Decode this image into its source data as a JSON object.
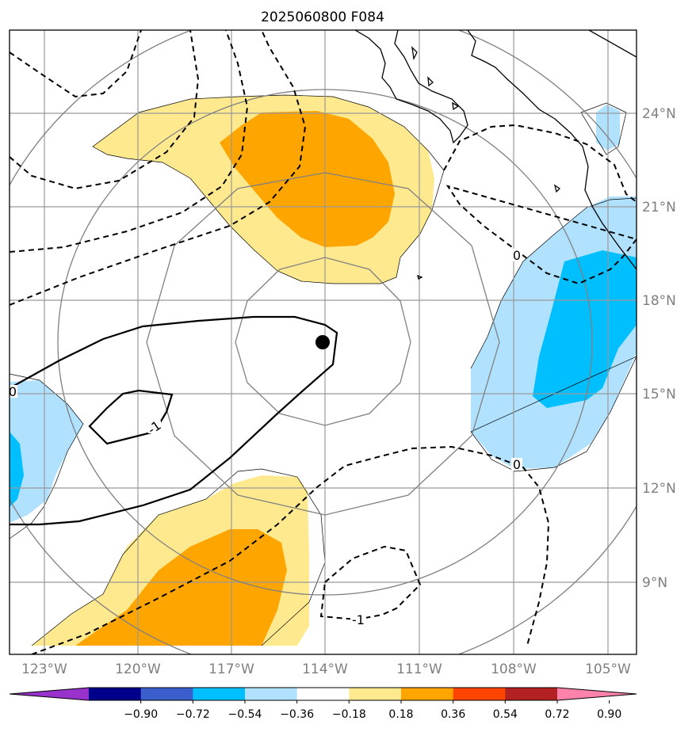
{
  "title": "2025060800 F084",
  "lon_labels": [
    "123°W",
    "120°W",
    "117°W",
    "114°W",
    "111°W",
    "108°W",
    "105°W"
  ],
  "lat_labels": [
    "24°N",
    "21°N",
    "18°N",
    "15°N",
    "12°N",
    "9°N"
  ],
  "contour_labels": [
    "0",
    "0",
    "0",
    "-1",
    "-1"
  ],
  "colorbar": {
    "ticks": [
      "−0.90",
      "−0.72",
      "−0.54",
      "−0.36",
      "−0.18",
      "0.18",
      "0.36",
      "0.54",
      "0.72",
      "0.90"
    ],
    "colors": [
      "#9932cc",
      "#00008b",
      "#3a5fcd",
      "#00bfff",
      "#b0e2ff",
      "#ffffff",
      "#ffe98f",
      "#ffa500",
      "#ff4500",
      "#b22222",
      "#ff82ab"
    ]
  },
  "map": {
    "extent": {
      "lon": [
        -123.9,
        -103.9
      ],
      "lat": [
        7.0,
        27.0
      ]
    },
    "storm_center": {
      "lon": -114.0,
      "lat": 16.7
    },
    "fill_colors": {
      "pos1": "#ffe98f",
      "pos2": "#ffa500",
      "neg1": "#b0e2ff",
      "neg2": "#00bfff"
    }
  }
}
